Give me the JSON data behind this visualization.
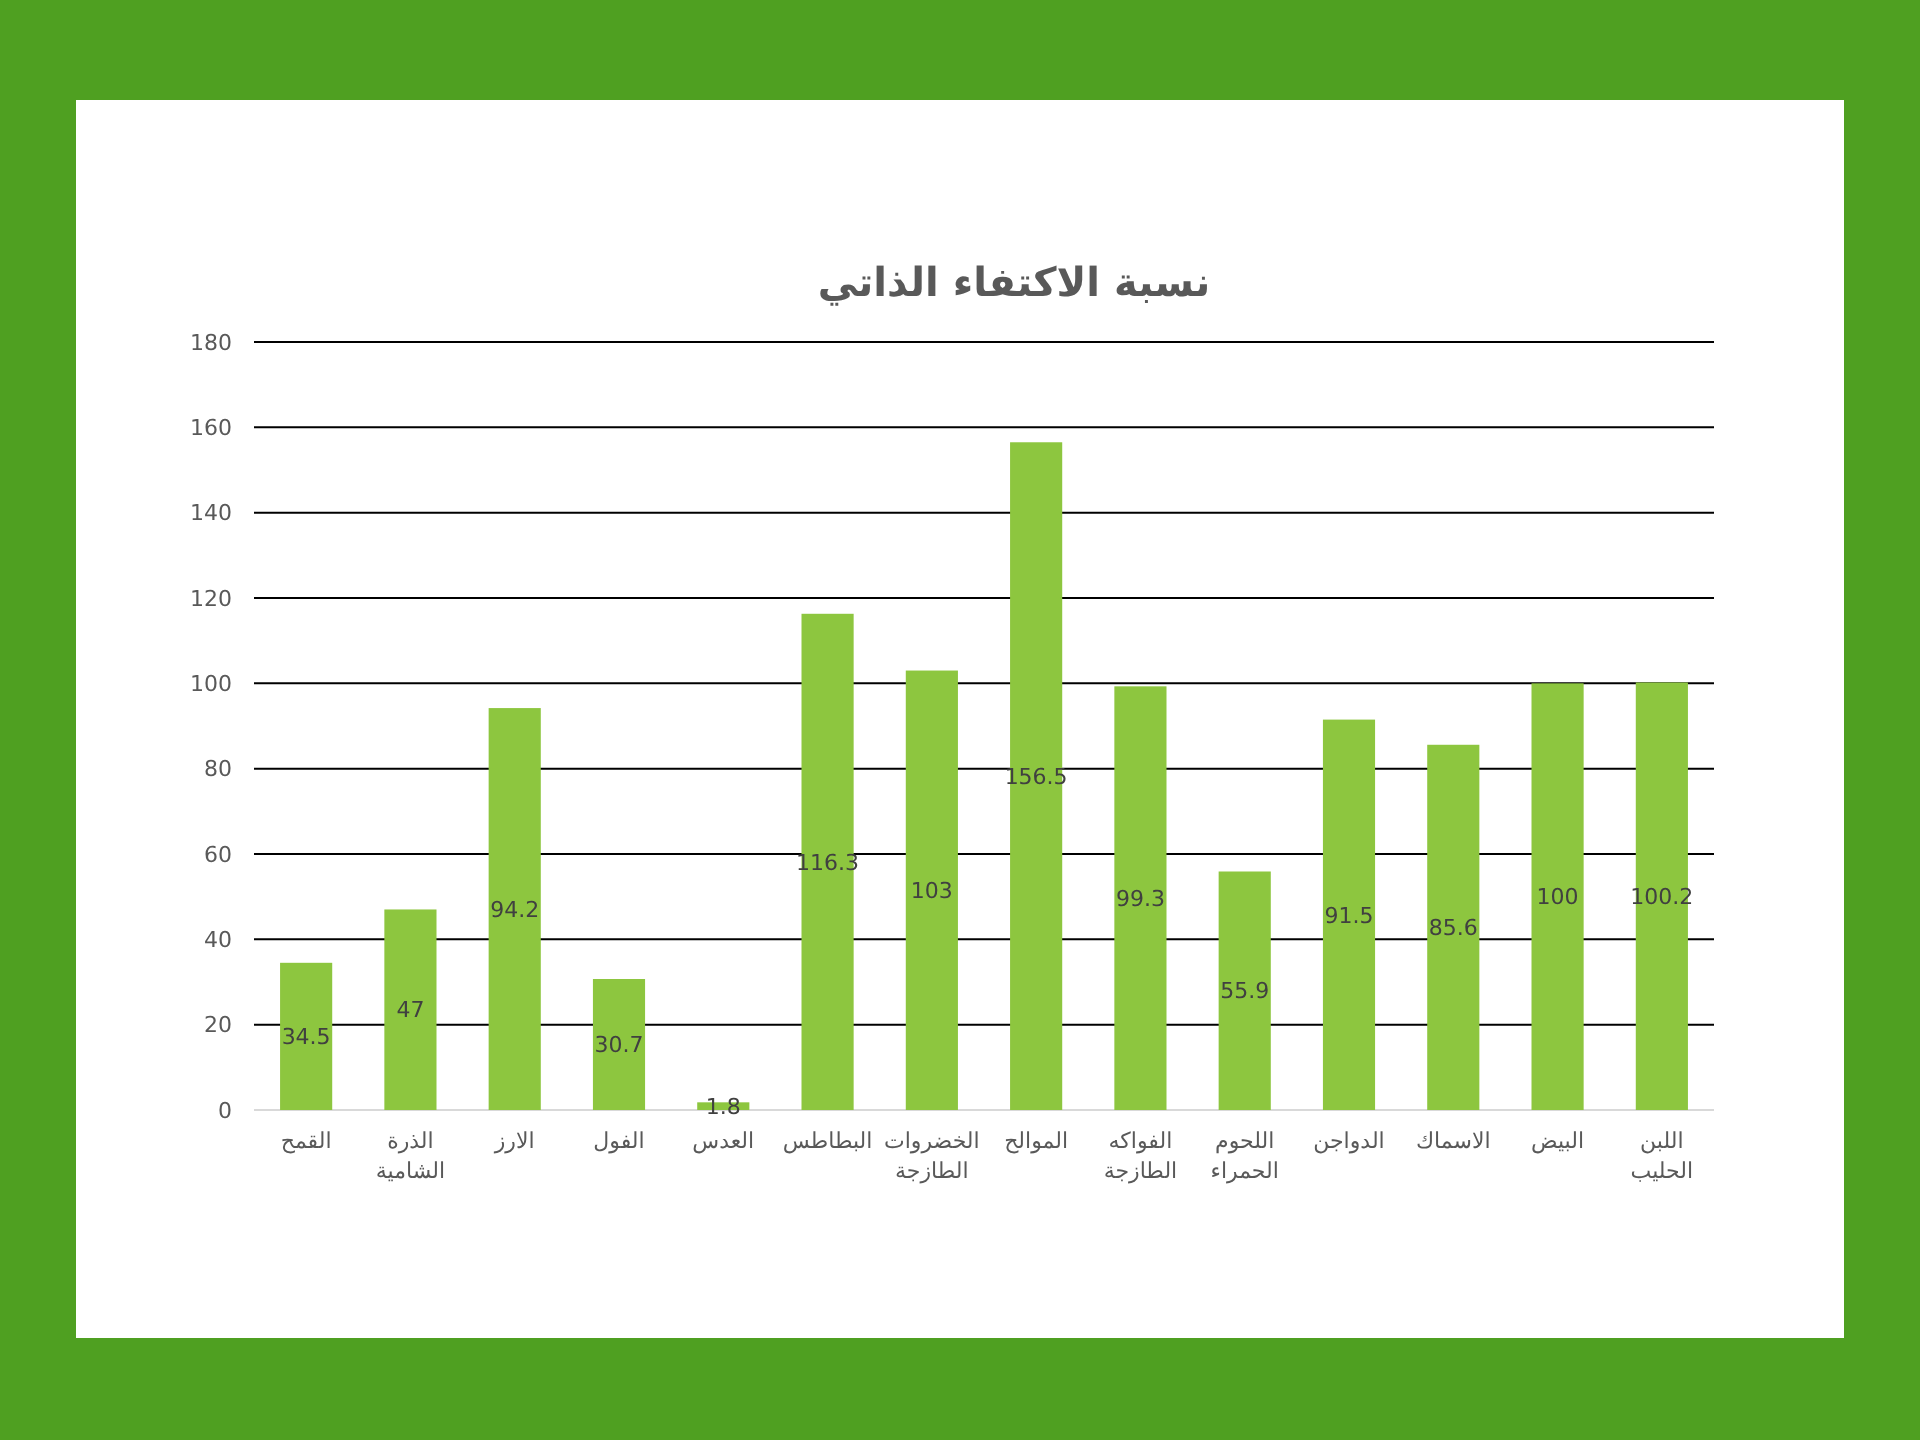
{
  "chart_data": {
    "type": "bar",
    "title": "نسبة الاكتفاء الذاتي",
    "categories": [
      "القمح",
      "الذرة الشامية",
      "الارز",
      "الفول",
      "العدس",
      "البطاطس",
      "الخضروات الطازجة",
      "الموالح",
      "الفواكه الطازجة",
      "اللحوم الحمراء",
      "الدواجن",
      "الاسماك",
      "البيض",
      "اللبن الحليب"
    ],
    "values": [
      34.5,
      47,
      94.2,
      30.7,
      1.8,
      116.3,
      103,
      156.5,
      99.3,
      55.9,
      91.5,
      85.6,
      100,
      100.2
    ],
    "color": "#8dc63f",
    "ylim": [
      0,
      180
    ],
    "yticks": [
      0,
      20,
      40,
      60,
      80,
      100,
      120,
      140,
      160,
      180
    ],
    "grid": "y",
    "data_labels": true
  }
}
